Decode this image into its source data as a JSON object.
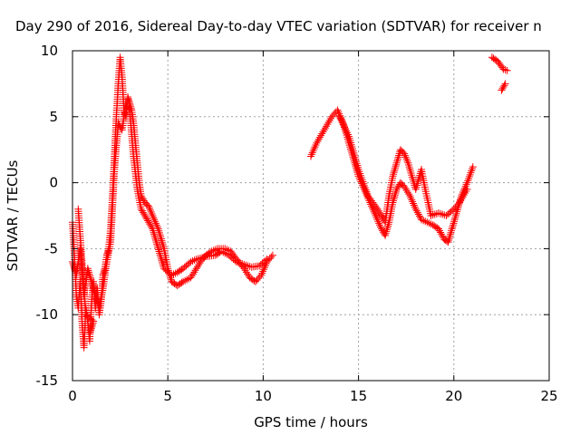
{
  "chart_data": {
    "type": "scatter",
    "title": "Day 290 of 2016, Sidereal Day-to-day VTEC variation (SDTVAR) for receiver n",
    "xlabel": "GPS time / hours",
    "ylabel": "SDTVAR / TECUs",
    "xlim": [
      0,
      25
    ],
    "ylim": [
      -15,
      10
    ],
    "x_ticks": [
      0,
      5,
      10,
      15,
      20,
      25
    ],
    "y_ticks": [
      -15,
      -10,
      -5,
      0,
      5,
      10
    ],
    "x_tick_labels": [
      "0",
      "5",
      "10",
      "15",
      "20",
      "25"
    ],
    "y_tick_labels": [
      "-15",
      "-10",
      "-5",
      "0",
      "5",
      "10"
    ],
    "grid": true,
    "legend": "none",
    "marker": "plus",
    "colors": {
      "points": "#ff0000",
      "grid": "#a0a0a0",
      "axes": "#000000"
    },
    "series": [
      {
        "tracks": [
          [
            [
              0.0,
              -3.0
            ],
            [
              0.1,
              -5.5
            ],
            [
              0.2,
              -8.5
            ],
            [
              0.3,
              -9.5
            ],
            [
              0.4,
              -7.5
            ],
            [
              0.5,
              -10.5
            ],
            [
              0.6,
              -12.5
            ],
            [
              0.7,
              -9.5
            ],
            [
              0.8,
              -10.5
            ],
            [
              0.9,
              -12.0
            ],
            [
              1.0,
              -9.0
            ],
            [
              1.1,
              -7.5
            ],
            [
              1.2,
              -9.5
            ],
            [
              1.3,
              -8.0
            ],
            [
              1.4,
              -10.0
            ],
            [
              1.5,
              -9.0
            ],
            [
              1.6,
              -7.0
            ],
            [
              1.7,
              -6.5
            ],
            [
              1.8,
              -5.5
            ],
            [
              1.9,
              -5.0
            ],
            [
              2.0,
              -3.5
            ],
            [
              2.1,
              -1.0
            ],
            [
              2.2,
              2.0
            ],
            [
              2.3,
              5.0
            ],
            [
              2.4,
              7.5
            ],
            [
              2.5,
              9.5
            ],
            [
              2.6,
              8.0
            ],
            [
              2.7,
              5.5
            ],
            [
              2.8,
              5.0
            ],
            [
              2.9,
              6.5
            ],
            [
              3.0,
              6.0
            ],
            [
              3.1,
              5.5
            ],
            [
              3.2,
              4.5
            ],
            [
              3.3,
              3.0
            ],
            [
              3.4,
              1.5
            ],
            [
              3.5,
              0.0
            ],
            [
              3.6,
              -1.0
            ],
            [
              3.8,
              -1.5
            ],
            [
              4.0,
              -1.8
            ],
            [
              4.2,
              -2.5
            ],
            [
              4.5,
              -3.5
            ],
            [
              4.8,
              -5.0
            ],
            [
              5.0,
              -6.5
            ],
            [
              5.2,
              -7.5
            ],
            [
              5.5,
              -7.8
            ],
            [
              5.8,
              -7.5
            ],
            [
              6.2,
              -7.2
            ],
            [
              6.5,
              -6.5
            ],
            [
              6.8,
              -5.8
            ],
            [
              7.0,
              -5.5
            ],
            [
              7.3,
              -5.2
            ],
            [
              7.6,
              -5.0
            ],
            [
              8.0,
              -5.0
            ],
            [
              8.3,
              -5.2
            ],
            [
              8.6,
              -5.8
            ],
            [
              9.0,
              -6.5
            ],
            [
              9.3,
              -7.2
            ],
            [
              9.6,
              -7.5
            ],
            [
              9.9,
              -7.0
            ],
            [
              10.2,
              -6.0
            ],
            [
              10.5,
              -5.5
            ]
          ],
          [
            [
              0.0,
              -6.0
            ],
            [
              0.2,
              -7.0
            ],
            [
              0.4,
              -5.0
            ],
            [
              0.6,
              -8.5
            ],
            [
              0.8,
              -6.5
            ],
            [
              1.0,
              -7.5
            ],
            [
              1.2,
              -8.5
            ],
            [
              1.4,
              -9.5
            ],
            [
              1.6,
              -8.0
            ],
            [
              1.8,
              -6.0
            ],
            [
              2.0,
              -4.5
            ],
            [
              2.2,
              1.0
            ],
            [
              2.4,
              4.5
            ],
            [
              2.6,
              4.0
            ],
            [
              2.8,
              6.0
            ],
            [
              3.0,
              5.5
            ],
            [
              3.2,
              2.0
            ],
            [
              3.4,
              -0.5
            ],
            [
              3.6,
              -2.0
            ],
            [
              3.8,
              -2.5
            ],
            [
              4.0,
              -3.0
            ],
            [
              4.2,
              -3.5
            ],
            [
              4.4,
              -4.5
            ],
            [
              4.6,
              -5.5
            ],
            [
              4.8,
              -6.5
            ],
            [
              5.2,
              -7.0
            ],
            [
              5.5,
              -6.8
            ],
            [
              5.8,
              -6.5
            ],
            [
              6.2,
              -6.0
            ],
            [
              6.5,
              -5.8
            ],
            [
              7.0,
              -5.6
            ],
            [
              7.5,
              -5.5
            ],
            [
              7.8,
              -5.2
            ],
            [
              8.2,
              -5.5
            ],
            [
              8.6,
              -6.0
            ],
            [
              9.0,
              -6.2
            ],
            [
              9.4,
              -6.4
            ],
            [
              9.8,
              -6.3
            ],
            [
              10.2,
              -5.8
            ]
          ],
          [
            [
              0.3,
              -2.0
            ],
            [
              0.7,
              -10.0
            ],
            [
              1.1,
              -10.5
            ],
            [
              0.9,
              -11.5
            ]
          ],
          [
            [
              12.5,
              2.0
            ],
            [
              12.8,
              3.0
            ],
            [
              13.2,
              4.0
            ],
            [
              13.6,
              5.0
            ],
            [
              13.9,
              5.5
            ],
            [
              14.2,
              4.5
            ],
            [
              14.5,
              3.0
            ],
            [
              14.8,
              1.5
            ],
            [
              15.0,
              0.5
            ],
            [
              15.3,
              -0.5
            ],
            [
              15.6,
              -1.5
            ],
            [
              15.9,
              -2.5
            ],
            [
              16.2,
              -3.5
            ],
            [
              16.4,
              -4.0
            ],
            [
              16.6,
              -3.0
            ],
            [
              16.8,
              -1.5
            ],
            [
              17.0,
              -0.5
            ],
            [
              17.2,
              0.0
            ],
            [
              17.4,
              -0.3
            ],
            [
              17.7,
              -1.0
            ],
            [
              18.0,
              -2.0
            ],
            [
              18.3,
              -2.8
            ],
            [
              18.6,
              -3.0
            ],
            [
              18.9,
              -3.2
            ],
            [
              19.2,
              -3.5
            ],
            [
              19.5,
              -4.3
            ],
            [
              19.7,
              -4.5
            ],
            [
              19.9,
              -3.5
            ],
            [
              20.1,
              -2.5
            ],
            [
              20.4,
              -1.0
            ],
            [
              20.7,
              0.0
            ],
            [
              21.0,
              1.2
            ]
          ],
          [
            [
              14.0,
              5.0
            ],
            [
              14.5,
              3.5
            ],
            [
              15.0,
              1.0
            ],
            [
              15.5,
              -1.0
            ],
            [
              16.0,
              -2.0
            ],
            [
              16.4,
              -3.0
            ],
            [
              16.6,
              -1.0
            ],
            [
              16.8,
              0.5
            ],
            [
              17.0,
              1.5
            ],
            [
              17.2,
              2.5
            ],
            [
              17.4,
              2.2
            ],
            [
              17.6,
              1.5
            ],
            [
              18.0,
              -0.5
            ],
            [
              18.3,
              1.0
            ],
            [
              18.5,
              -0.5
            ],
            [
              18.8,
              -2.5
            ],
            [
              19.2,
              -2.3
            ],
            [
              19.6,
              -2.5
            ],
            [
              20.0,
              -2.0
            ],
            [
              20.3,
              -1.5
            ],
            [
              20.7,
              -0.5
            ]
          ],
          [
            [
              22.0,
              9.5
            ],
            [
              22.3,
              9.2
            ],
            [
              22.6,
              8.6
            ],
            [
              22.8,
              8.5
            ]
          ],
          [
            [
              22.5,
              7.0
            ],
            [
              22.7,
              7.5
            ]
          ]
        ]
      }
    ]
  }
}
